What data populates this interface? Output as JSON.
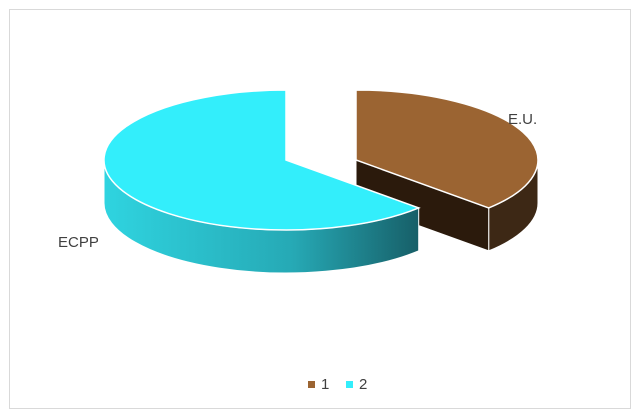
{
  "chart_data": {
    "type": "pie",
    "style": "3d-exploded",
    "slices": [
      {
        "category": "1",
        "label": "E.U.",
        "value": 37,
        "color": "#9b6432",
        "side_color": "#3d2815"
      },
      {
        "category": "2",
        "label": "ECPP",
        "value": 63,
        "color": "#33eefb",
        "side_color": "#1c7f8a"
      }
    ],
    "legend": {
      "position": "bottom",
      "entries": [
        "1",
        "2"
      ]
    },
    "title": ""
  }
}
